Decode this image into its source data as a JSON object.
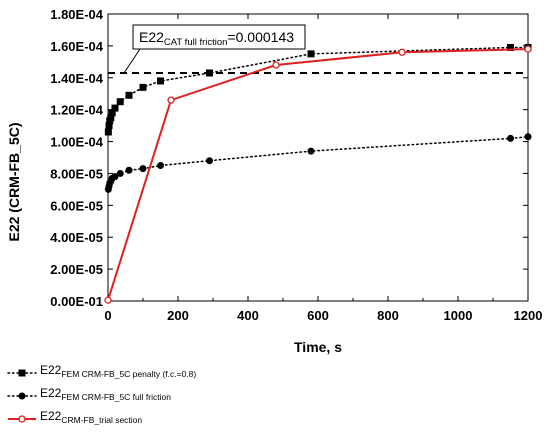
{
  "chart_data": {
    "type": "line",
    "xlabel": "Time, s",
    "ylabel": "E22 (CRM-FB_5C)",
    "xlim": [
      0,
      1200
    ],
    "ylim": [
      0,
      0.00018
    ],
    "x_ticks": [
      0,
      200,
      400,
      600,
      800,
      1000,
      1200
    ],
    "x_tick_labels": [
      "0",
      "200",
      "400",
      "600",
      "800",
      "1000",
      "1200"
    ],
    "y_ticks": [
      0,
      2e-05,
      4e-05,
      6e-05,
      8e-05,
      0.0001,
      0.00012,
      0.00014,
      0.00016,
      0.00018
    ],
    "y_tick_labels": [
      "0.00E-01",
      "2.00E-05",
      "4.00E-05",
      "6.00E-05",
      "8.00E-05",
      "1.00E-04",
      "1.20E-04",
      "1.40E-04",
      "1.60E-04",
      "1.80E-04"
    ],
    "grid": false,
    "legend_position": "below",
    "reference_line": {
      "y": 0.000143,
      "style": "dashed",
      "label_main": "E22",
      "label_sub": "CAT full friction",
      "label_value": "=0.000143"
    },
    "series": [
      {
        "name_main": "E22",
        "name_sub": "FEM CRM-FB_5C penalty (f.c.=0.8)",
        "marker": "square",
        "line": "dotted",
        "color": "#000000",
        "x": [
          1,
          3,
          5,
          8,
          12,
          20,
          35,
          60,
          100,
          150,
          290,
          580,
          1150,
          1200
        ],
        "y": [
          0.000106,
          0.00011,
          0.000113,
          0.000115,
          0.000118,
          0.000121,
          0.000125,
          0.000129,
          0.000134,
          0.000138,
          0.000143,
          0.000155,
          0.000159,
          0.000159
        ]
      },
      {
        "name_main": "E22",
        "name_sub": "FEM CRM-FB_5C full friction",
        "marker": "circle",
        "line": "dotted",
        "color": "#000000",
        "x": [
          1,
          3,
          5,
          8,
          12,
          20,
          35,
          60,
          100,
          150,
          290,
          580,
          1150,
          1200
        ],
        "y": [
          7e-05,
          7.2e-05,
          7.4e-05,
          7.5e-05,
          7.7e-05,
          7.8e-05,
          8e-05,
          8.2e-05,
          8.3e-05,
          8.5e-05,
          8.8e-05,
          9.4e-05,
          0.000102,
          0.000103
        ]
      },
      {
        "name_main": "E22",
        "name_sub": "CRM-FB_trial section",
        "marker": "open-circle",
        "line": "solid",
        "color": "#e02020",
        "x": [
          0,
          180,
          480,
          840,
          1200
        ],
        "y": [
          5e-07,
          0.000126,
          0.000148,
          0.000156,
          0.000158
        ]
      }
    ]
  }
}
